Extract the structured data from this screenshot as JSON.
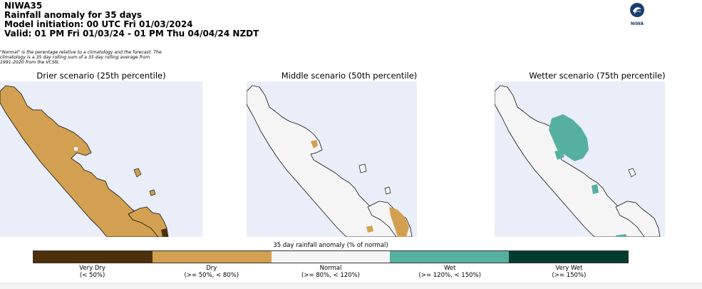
{
  "header": {
    "line1": "NIWA35",
    "line2": "Rainfall anomaly for 35 days",
    "line3": "Model initiation: 00 UTC Fri 01/03/2024",
    "line4": "Valid: 01 PM Fri 01/03/24 - 01 PM Thu 04/04/24 NZDT"
  },
  "logo": {
    "text": "NIWA"
  },
  "note": "\"Normal\" is the perentage relative to a climatology and the forecast. The climatology is a 35 day rolling sum of a 35 day rolling average from 1991-2020 from the VCSN.",
  "maps": [
    {
      "title": "Drier scenario (25th percentile)"
    },
    {
      "title": "Middle scenario (50th percentile)"
    },
    {
      "title": "Wetter scenario (75th percentile)"
    }
  ],
  "colorbar": {
    "title": "35 day rainfall anomaly (% of normal)",
    "categories": [
      {
        "label": "Very Dry",
        "range": "(< 50%)",
        "color": "#4d2f0a"
      },
      {
        "label": "Dry",
        "range": "(>= 50%, < 80%)",
        "color": "#d2a050"
      },
      {
        "label": "Normal",
        "range": "(>= 80%, < 120%)",
        "color": "#f5f5f5"
      },
      {
        "label": "Wet",
        "range": "(>= 120%, < 150%)",
        "color": "#56b0a0"
      },
      {
        "label": "Very Wet",
        "range": "(>= 150%)",
        "color": "#003c2f"
      }
    ]
  },
  "colors": {
    "ocean": "#e9eef8",
    "coast": "#111111"
  }
}
